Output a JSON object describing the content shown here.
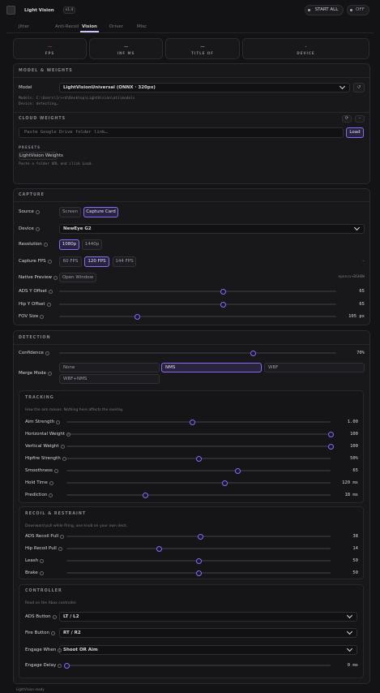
{
  "header": {
    "title": "Light Vision",
    "version": "v1.4",
    "start_all": "START ALL",
    "off": "OFF"
  },
  "tabs": [
    {
      "label": "Jitter"
    },
    {
      "label": "Anti-Recoil"
    },
    {
      "label": "Vision",
      "active": true
    },
    {
      "label": "Driver"
    },
    {
      "label": "Misc"
    }
  ],
  "stats": [
    {
      "value": "—",
      "label": "FPS"
    },
    {
      "value": "—",
      "label": "INF MS"
    },
    {
      "value": "—",
      "label": "TITLE OF"
    },
    {
      "value": "-",
      "label": "DEVICE"
    }
  ],
  "model_weights": {
    "title": "MODEL & WEIGHTS",
    "model_label": "Model",
    "model_value": "LightVisionUniversal (ONNX · 320px)",
    "refresh": "↺",
    "models_path": "Models: C:\\Users\\[r>rd\\Desktop\\LightVision\\ati\\models",
    "device_status": "Device: detecting…",
    "cloud_title": "CLOUD WEIGHTS",
    "cloud_buttons": [
      "⟳",
      "–"
    ],
    "link_placeholder": "Paste Google Drive folder link…",
    "load": "Load",
    "presets_title": "PRESETS",
    "preset": "LightVision Weights",
    "hint": "Paste a folder URL and click Load."
  },
  "capture": {
    "title": "CAPTURE",
    "source": {
      "label": "Source",
      "options": [
        {
          "label": "Screen"
        },
        {
          "label": "Capture Card",
          "active": true
        }
      ]
    },
    "device": {
      "label": "Device",
      "value": "NewEye G2"
    },
    "resolution": {
      "label": "Resolution",
      "options": [
        {
          "label": "1080p",
          "active": true
        },
        {
          "label": "1440p"
        }
      ]
    },
    "capture_fps": {
      "label": "Capture FPS",
      "options": [
        {
          "label": "60 FPS"
        },
        {
          "label": "120 FPS",
          "active": true
        },
        {
          "label": "144 FPS"
        }
      ],
      "status": "–"
    },
    "native_preview": {
      "label": "Native Preview",
      "button": "Open Window",
      "status": "opencv+DSHOW"
    },
    "sliders": [
      {
        "label": "ADS Y Offset",
        "value": 65,
        "value_label": "65",
        "range": [
          0,
          110
        ]
      },
      {
        "label": "Hip Y Offset",
        "value": 65,
        "value_label": "65",
        "range": [
          0,
          110
        ]
      },
      {
        "label": "FOV Size",
        "value": 105,
        "value_label": "105 px",
        "range": [
          20,
          320
        ]
      }
    ]
  },
  "detection": {
    "title": "DETECTION",
    "confidence": {
      "label": "Confidence",
      "value": 70,
      "value_label": "70%",
      "range": [
        0,
        100
      ]
    },
    "merge_mode": {
      "label": "Merge Mode",
      "options": [
        {
          "label": "None"
        },
        {
          "label": "NMS",
          "active": true
        },
        {
          "label": "WBF"
        },
        {
          "label": "WBF+NMS"
        }
      ]
    },
    "tracking": {
      "title": "TRACKING",
      "subtitle": "How the aim moves. Nothing here affects the overlay.",
      "sliders": [
        {
          "label": "Aim Strength",
          "value": 1.0,
          "value_label": "1.00",
          "range": [
            0,
            2.1
          ]
        },
        {
          "label": "Horizontal Weight",
          "value": 100,
          "value_label": "100",
          "range": [
            0,
            100
          ]
        },
        {
          "label": "Vertical Weight",
          "value": 100,
          "value_label": "100",
          "range": [
            0,
            100
          ]
        },
        {
          "label": "Hipfire Strength",
          "value": 50,
          "value_label": "50%",
          "range": [
            0,
            100
          ]
        },
        {
          "label": "Smoothness",
          "value": 65,
          "value_label": "65",
          "range": [
            0,
            100
          ]
        },
        {
          "label": "Hold Time",
          "value": 120,
          "value_label": "120 ms",
          "range": [
            0,
            200
          ]
        },
        {
          "label": "Prediction",
          "value": 18,
          "value_label": "18 ms",
          "range": [
            0,
            60
          ]
        }
      ]
    },
    "recoil": {
      "title": "RECOIL & RESTRAINT",
      "subtitle": "Downward pull while firing, one knob on your own deck.",
      "sliders": [
        {
          "label": "ADS Recoil Pull",
          "value": 38,
          "value_label": "38",
          "range": [
            0,
            75
          ]
        },
        {
          "label": "Hip Recoil Pull",
          "value": 14,
          "value_label": "14",
          "range": [
            0,
            40
          ]
        },
        {
          "label": "Leash",
          "value": 50,
          "value_label": "50",
          "range": [
            0,
            100
          ]
        },
        {
          "label": "Brake",
          "value": 50,
          "value_label": "50",
          "range": [
            0,
            100
          ]
        }
      ]
    },
    "controller": {
      "title": "CONTROLLER",
      "subtitle": "Read on the Xbox controller.",
      "selects": [
        {
          "label": "ADS Button",
          "value": "LT / L2"
        },
        {
          "label": "Fire Button",
          "value": "RT / R2"
        },
        {
          "label": "Engage When",
          "value": "Shoot OR Aim"
        }
      ],
      "slider": {
        "label": "Engage Delay",
        "value": 0,
        "value_label": "0 ms",
        "range": [
          0,
          100
        ]
      }
    }
  },
  "footer": "LightVision ready"
}
